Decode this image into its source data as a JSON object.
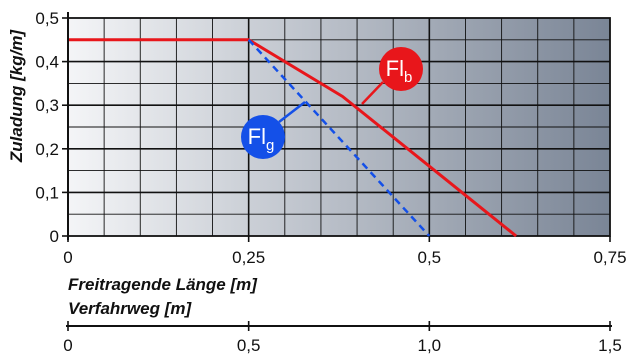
{
  "chart_data": {
    "type": "line",
    "xlabel": "Freitragende Länge [m]",
    "ylabel": "Zuladung [kg/m]",
    "secondary_xlabel": "Verfahrweg [m]",
    "xlim": [
      0,
      0.75
    ],
    "ylim": [
      0,
      0.5
    ],
    "x_ticks": [
      "0",
      "0,25",
      "0,5",
      "0,75"
    ],
    "y_ticks": [
      "0",
      "0,1",
      "0,2",
      "0,3",
      "0,4",
      "0,5"
    ],
    "secondary_x_ticks": [
      "0",
      "0,5",
      "1,0",
      "1,5"
    ],
    "grid": true,
    "series": [
      {
        "name": "Fl_b",
        "label_main": "Fl",
        "label_sub": "b",
        "style": "solid",
        "color": "#e8161b",
        "x": [
          0,
          0.25,
          0.38,
          0.5,
          0.62
        ],
        "y": [
          0.45,
          0.45,
          0.32,
          0.16,
          0
        ]
      },
      {
        "name": "Fl_g",
        "label_main": "Fl",
        "label_sub": "g",
        "style": "dashed",
        "color": "#1450e8",
        "x": [
          0.25,
          0.5
        ],
        "y": [
          0.45,
          0
        ]
      }
    ],
    "colors": {
      "bg_start": "#f4f5f7",
      "bg_end": "#7a8596",
      "grid": "#111111",
      "badge_b": "#e8161b",
      "badge_g": "#1450e8"
    }
  }
}
